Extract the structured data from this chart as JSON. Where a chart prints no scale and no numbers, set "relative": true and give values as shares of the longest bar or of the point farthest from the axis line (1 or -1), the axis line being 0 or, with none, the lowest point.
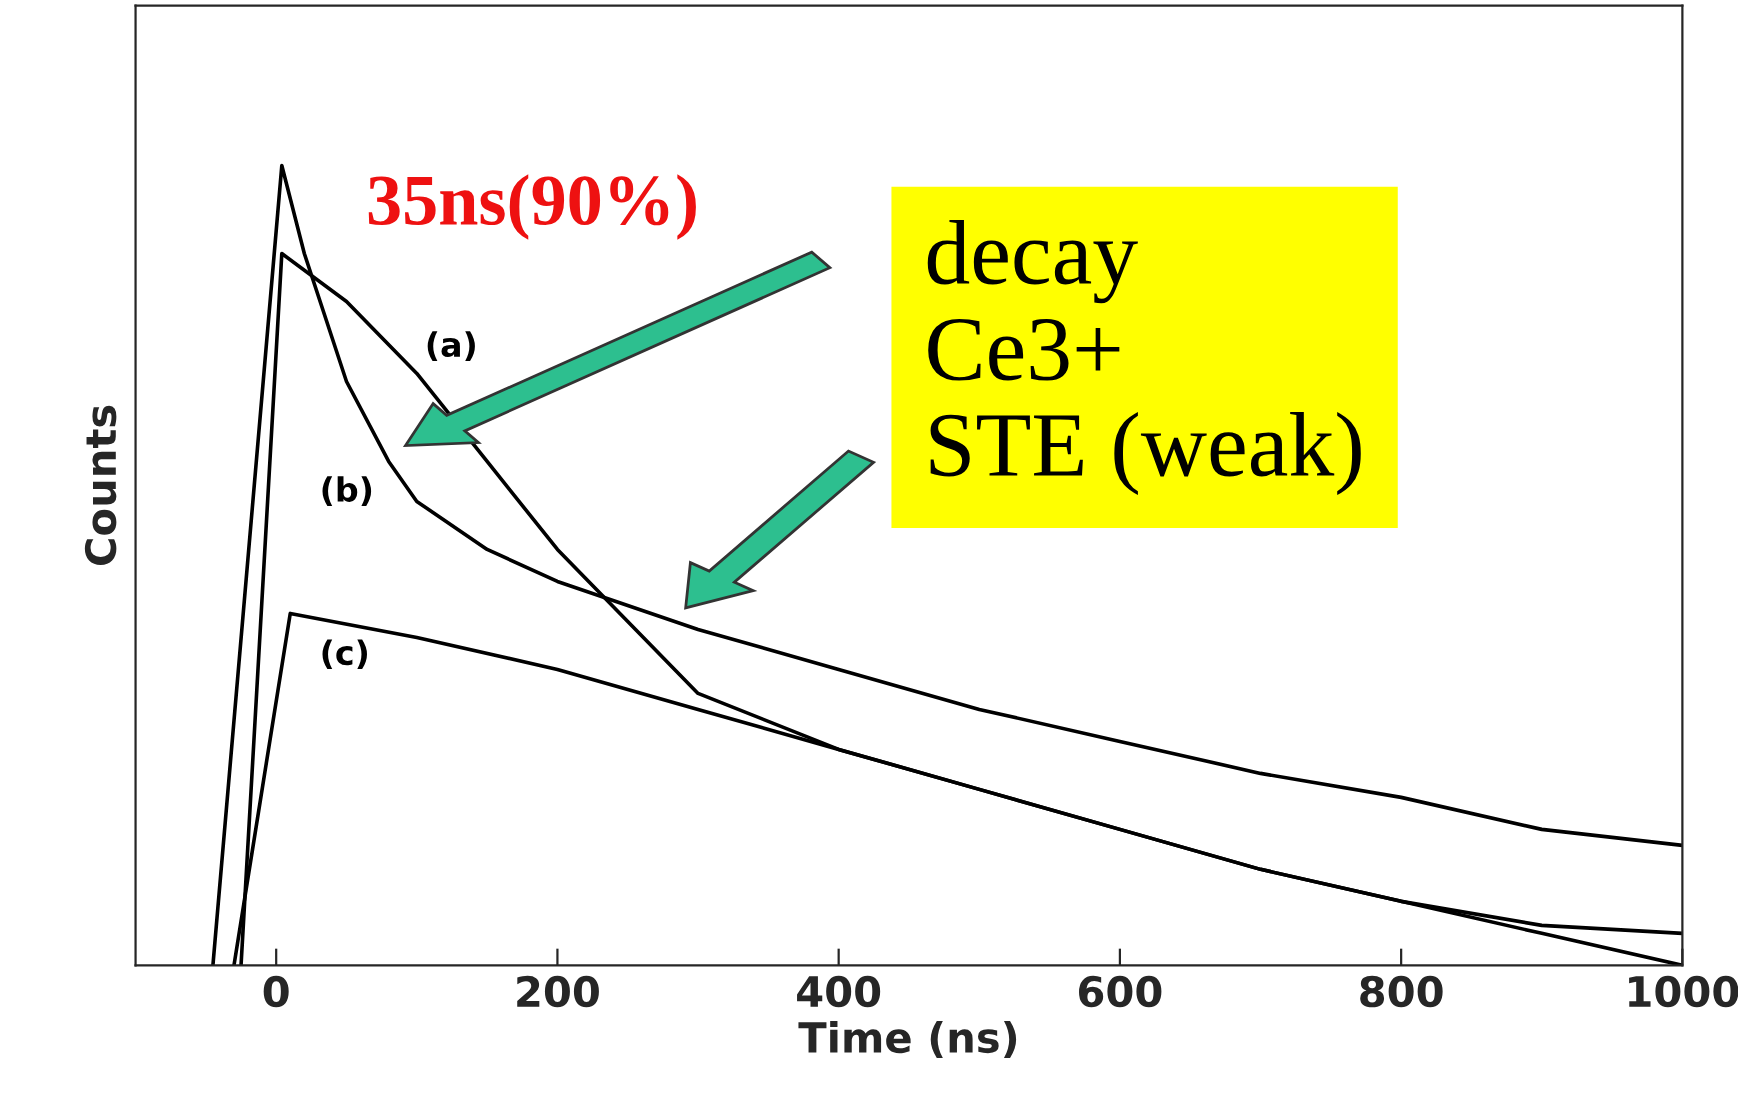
{
  "chart_data": {
    "type": "line",
    "xlabel": "Time (ns)",
    "ylabel": "Counts",
    "relative": true,
    "xlim": [
      -100,
      1000
    ],
    "xticks": [
      0,
      200,
      400,
      600,
      800,
      1000
    ],
    "tick_labels": "x",
    "grid": false,
    "legend": false,
    "marker": "none",
    "line_style": "solid",
    "series": [
      {
        "color": "#000000",
        "x": [
          -25,
          4,
          50,
          100,
          150,
          200,
          250,
          300,
          400,
          500,
          600,
          700,
          800,
          900,
          1000
        ],
        "values": [
          0,
          0.89,
          0.83,
          0.74,
          0.63,
          0.52,
          0.43,
          0.34,
          0.27,
          0.22,
          0.17,
          0.12,
          0.08,
          0.05,
          0.04
        ]
      },
      {
        "color": "#000000",
        "x": [
          -45,
          4,
          20,
          50,
          80,
          100,
          150,
          200,
          300,
          400,
          500,
          600,
          700,
          800,
          900,
          1000
        ],
        "values": [
          0,
          1,
          0.89,
          0.73,
          0.63,
          0.58,
          0.52,
          0.48,
          0.42,
          0.37,
          0.32,
          0.28,
          0.24,
          0.21,
          0.17,
          0.15
        ]
      },
      {
        "color": "#000000",
        "x": [
          -30,
          10,
          100,
          200,
          300,
          400,
          500,
          600,
          700,
          800,
          900,
          1000
        ],
        "values": [
          0,
          0.44,
          0.41,
          0.37,
          0.32,
          0.27,
          0.22,
          0.17,
          0.12,
          0.08,
          0.04,
          0
        ]
      }
    ],
    "annotations": [
      "(a)",
      "(b)",
      "(c)",
      "35ns(90%)",
      "decay\nCe3+\nSTE (weak)"
    ]
  }
}
